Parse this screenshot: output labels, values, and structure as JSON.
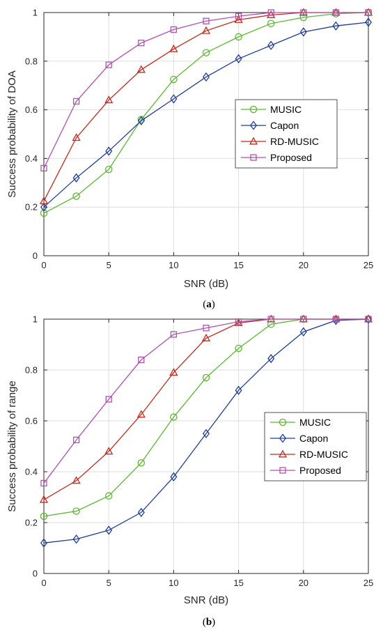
{
  "colors": {
    "MUSIC": "#5cb82e",
    "Capon": "#1f3d99",
    "RD-MUSIC": "#c4281c",
    "Proposed": "#b050b0",
    "grid": "#dedede",
    "axis": "#262626"
  },
  "chart_data": [
    {
      "type": "line",
      "panel": "(a)",
      "panel_paren_open": "(",
      "panel_letter": "a",
      "panel_paren_close": ")",
      "xlabel": "SNR (dB)",
      "ylabel": "Success probability of DOA",
      "xlim": [
        0,
        25
      ],
      "ylim": [
        0,
        1
      ],
      "xticks": [
        0,
        5,
        10,
        15,
        20,
        25
      ],
      "yticks": [
        0,
        0.2,
        0.4,
        0.6,
        0.8,
        1
      ],
      "grid": true,
      "legend_position": "center-right",
      "x": [
        0,
        2.5,
        5,
        7.5,
        10,
        12.5,
        15,
        17.5,
        20,
        22.5,
        25
      ],
      "series": [
        {
          "name": "MUSIC",
          "marker": "circle",
          "values": [
            0.175,
            0.245,
            0.355,
            0.56,
            0.725,
            0.835,
            0.9,
            0.955,
            0.98,
            0.995,
            1.0
          ]
        },
        {
          "name": "Capon",
          "marker": "diamond",
          "values": [
            0.2,
            0.32,
            0.43,
            0.555,
            0.645,
            0.735,
            0.81,
            0.865,
            0.92,
            0.945,
            0.96
          ]
        },
        {
          "name": "RD-MUSIC",
          "marker": "triangle",
          "values": [
            0.225,
            0.485,
            0.64,
            0.765,
            0.85,
            0.925,
            0.97,
            0.99,
            1.0,
            1.0,
            1.0
          ]
        },
        {
          "name": "Proposed",
          "marker": "square",
          "values": [
            0.36,
            0.635,
            0.785,
            0.875,
            0.93,
            0.965,
            0.985,
            1.0,
            1.0,
            1.0,
            1.0
          ]
        }
      ]
    },
    {
      "type": "line",
      "panel": "(b)",
      "panel_paren_open": "(",
      "panel_letter": "b",
      "panel_paren_close": ")",
      "xlabel": "SNR (dB)",
      "ylabel": "Success probability of range",
      "xlim": [
        0,
        25
      ],
      "ylim": [
        0,
        1
      ],
      "xticks": [
        0,
        5,
        10,
        15,
        20,
        25
      ],
      "yticks": [
        0,
        0.2,
        0.4,
        0.6,
        0.8,
        1
      ],
      "grid": true,
      "legend_position": "center-right",
      "x": [
        0,
        2.5,
        5,
        7.5,
        10,
        12.5,
        15,
        17.5,
        20,
        22.5,
        25
      ],
      "series": [
        {
          "name": "MUSIC",
          "marker": "circle",
          "values": [
            0.225,
            0.245,
            0.305,
            0.435,
            0.615,
            0.77,
            0.885,
            0.98,
            1.0,
            1.0,
            1.0
          ]
        },
        {
          "name": "Capon",
          "marker": "diamond",
          "values": [
            0.12,
            0.135,
            0.17,
            0.24,
            0.38,
            0.55,
            0.72,
            0.845,
            0.95,
            0.995,
            1.0
          ]
        },
        {
          "name": "RD-MUSIC",
          "marker": "triangle",
          "values": [
            0.29,
            0.365,
            0.48,
            0.625,
            0.79,
            0.925,
            0.985,
            1.0,
            1.0,
            1.0,
            1.0
          ]
        },
        {
          "name": "Proposed",
          "marker": "square",
          "values": [
            0.355,
            0.525,
            0.685,
            0.84,
            0.94,
            0.965,
            0.99,
            1.0,
            1.0,
            1.0,
            1.0
          ]
        }
      ]
    }
  ]
}
